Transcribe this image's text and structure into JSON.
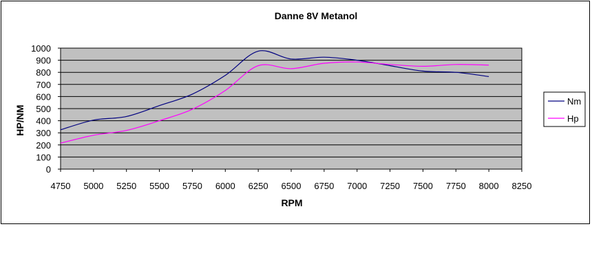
{
  "chart_data": {
    "type": "line",
    "title": "Danne 8V Metanol",
    "xlabel": "RPM",
    "ylabel": "HP/NM",
    "xlim": [
      4750,
      8250
    ],
    "ylim": [
      0,
      1000
    ],
    "xticks": [
      4750,
      5000,
      5250,
      5500,
      5750,
      6000,
      6250,
      6500,
      6750,
      7000,
      7250,
      7500,
      7750,
      8000,
      8250
    ],
    "yticks": [
      0,
      100,
      200,
      300,
      400,
      500,
      600,
      700,
      800,
      900,
      1000
    ],
    "grid": "horizontal",
    "legend_position": "right",
    "plot_background": "#c0c0c0",
    "series": [
      {
        "name": "Nm",
        "color": "#000080",
        "x": [
          4750,
          5000,
          5250,
          5500,
          5750,
          6000,
          6250,
          6500,
          6750,
          7000,
          7250,
          7500,
          7750,
          8000
        ],
        "y": [
          325,
          405,
          435,
          525,
          620,
          775,
          975,
          910,
          925,
          900,
          855,
          810,
          800,
          765
        ]
      },
      {
        "name": "Hp",
        "color": "#ff00ff",
        "x": [
          4750,
          5000,
          5250,
          5500,
          5750,
          6000,
          6250,
          6500,
          6750,
          7000,
          7250,
          7500,
          7750,
          8000
        ],
        "y": [
          215,
          280,
          320,
          400,
          495,
          650,
          855,
          830,
          875,
          885,
          865,
          850,
          865,
          860
        ]
      }
    ]
  }
}
